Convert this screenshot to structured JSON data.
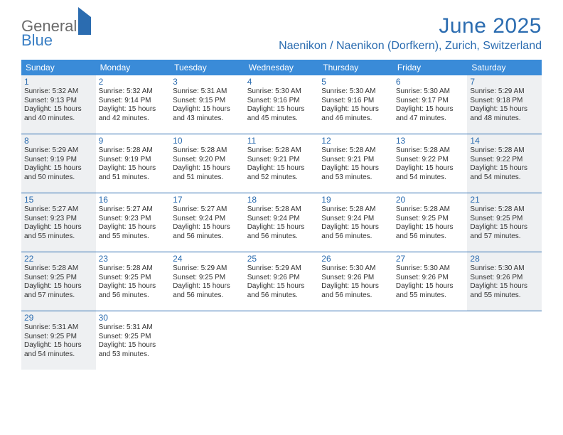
{
  "brand": {
    "general": "General",
    "blue": "Blue"
  },
  "title": "June 2025",
  "location": "Naenikon / Naenikon (Dorfkern), Zurich, Switzerland",
  "colors": {
    "header_bg": "#3a8bd8",
    "accent": "#2b6cb0",
    "shaded": "#eef0f2",
    "text": "#333333",
    "logo_gray": "#6b6b6b",
    "background": "#ffffff"
  },
  "daynames": [
    "Sunday",
    "Monday",
    "Tuesday",
    "Wednesday",
    "Thursday",
    "Friday",
    "Saturday"
  ],
  "weeks": [
    [
      {
        "n": "1",
        "shaded": true,
        "sr": "Sunrise: 5:32 AM",
        "ss": "Sunset: 9:13 PM",
        "d1": "Daylight: 15 hours",
        "d2": "and 40 minutes."
      },
      {
        "n": "2",
        "sr": "Sunrise: 5:32 AM",
        "ss": "Sunset: 9:14 PM",
        "d1": "Daylight: 15 hours",
        "d2": "and 42 minutes."
      },
      {
        "n": "3",
        "sr": "Sunrise: 5:31 AM",
        "ss": "Sunset: 9:15 PM",
        "d1": "Daylight: 15 hours",
        "d2": "and 43 minutes."
      },
      {
        "n": "4",
        "sr": "Sunrise: 5:30 AM",
        "ss": "Sunset: 9:16 PM",
        "d1": "Daylight: 15 hours",
        "d2": "and 45 minutes."
      },
      {
        "n": "5",
        "sr": "Sunrise: 5:30 AM",
        "ss": "Sunset: 9:16 PM",
        "d1": "Daylight: 15 hours",
        "d2": "and 46 minutes."
      },
      {
        "n": "6",
        "sr": "Sunrise: 5:30 AM",
        "ss": "Sunset: 9:17 PM",
        "d1": "Daylight: 15 hours",
        "d2": "and 47 minutes."
      },
      {
        "n": "7",
        "shaded": true,
        "sr": "Sunrise: 5:29 AM",
        "ss": "Sunset: 9:18 PM",
        "d1": "Daylight: 15 hours",
        "d2": "and 48 minutes."
      }
    ],
    [
      {
        "n": "8",
        "shaded": true,
        "sr": "Sunrise: 5:29 AM",
        "ss": "Sunset: 9:19 PM",
        "d1": "Daylight: 15 hours",
        "d2": "and 50 minutes."
      },
      {
        "n": "9",
        "sr": "Sunrise: 5:28 AM",
        "ss": "Sunset: 9:19 PM",
        "d1": "Daylight: 15 hours",
        "d2": "and 51 minutes."
      },
      {
        "n": "10",
        "sr": "Sunrise: 5:28 AM",
        "ss": "Sunset: 9:20 PM",
        "d1": "Daylight: 15 hours",
        "d2": "and 51 minutes."
      },
      {
        "n": "11",
        "sr": "Sunrise: 5:28 AM",
        "ss": "Sunset: 9:21 PM",
        "d1": "Daylight: 15 hours",
        "d2": "and 52 minutes."
      },
      {
        "n": "12",
        "sr": "Sunrise: 5:28 AM",
        "ss": "Sunset: 9:21 PM",
        "d1": "Daylight: 15 hours",
        "d2": "and 53 minutes."
      },
      {
        "n": "13",
        "sr": "Sunrise: 5:28 AM",
        "ss": "Sunset: 9:22 PM",
        "d1": "Daylight: 15 hours",
        "d2": "and 54 minutes."
      },
      {
        "n": "14",
        "shaded": true,
        "sr": "Sunrise: 5:28 AM",
        "ss": "Sunset: 9:22 PM",
        "d1": "Daylight: 15 hours",
        "d2": "and 54 minutes."
      }
    ],
    [
      {
        "n": "15",
        "shaded": true,
        "sr": "Sunrise: 5:27 AM",
        "ss": "Sunset: 9:23 PM",
        "d1": "Daylight: 15 hours",
        "d2": "and 55 minutes."
      },
      {
        "n": "16",
        "sr": "Sunrise: 5:27 AM",
        "ss": "Sunset: 9:23 PM",
        "d1": "Daylight: 15 hours",
        "d2": "and 55 minutes."
      },
      {
        "n": "17",
        "sr": "Sunrise: 5:27 AM",
        "ss": "Sunset: 9:24 PM",
        "d1": "Daylight: 15 hours",
        "d2": "and 56 minutes."
      },
      {
        "n": "18",
        "sr": "Sunrise: 5:28 AM",
        "ss": "Sunset: 9:24 PM",
        "d1": "Daylight: 15 hours",
        "d2": "and 56 minutes."
      },
      {
        "n": "19",
        "sr": "Sunrise: 5:28 AM",
        "ss": "Sunset: 9:24 PM",
        "d1": "Daylight: 15 hours",
        "d2": "and 56 minutes."
      },
      {
        "n": "20",
        "sr": "Sunrise: 5:28 AM",
        "ss": "Sunset: 9:25 PM",
        "d1": "Daylight: 15 hours",
        "d2": "and 56 minutes."
      },
      {
        "n": "21",
        "shaded": true,
        "sr": "Sunrise: 5:28 AM",
        "ss": "Sunset: 9:25 PM",
        "d1": "Daylight: 15 hours",
        "d2": "and 57 minutes."
      }
    ],
    [
      {
        "n": "22",
        "shaded": true,
        "sr": "Sunrise: 5:28 AM",
        "ss": "Sunset: 9:25 PM",
        "d1": "Daylight: 15 hours",
        "d2": "and 57 minutes."
      },
      {
        "n": "23",
        "sr": "Sunrise: 5:28 AM",
        "ss": "Sunset: 9:25 PM",
        "d1": "Daylight: 15 hours",
        "d2": "and 56 minutes."
      },
      {
        "n": "24",
        "sr": "Sunrise: 5:29 AM",
        "ss": "Sunset: 9:25 PM",
        "d1": "Daylight: 15 hours",
        "d2": "and 56 minutes."
      },
      {
        "n": "25",
        "sr": "Sunrise: 5:29 AM",
        "ss": "Sunset: 9:26 PM",
        "d1": "Daylight: 15 hours",
        "d2": "and 56 minutes."
      },
      {
        "n": "26",
        "sr": "Sunrise: 5:30 AM",
        "ss": "Sunset: 9:26 PM",
        "d1": "Daylight: 15 hours",
        "d2": "and 56 minutes."
      },
      {
        "n": "27",
        "sr": "Sunrise: 5:30 AM",
        "ss": "Sunset: 9:26 PM",
        "d1": "Daylight: 15 hours",
        "d2": "and 55 minutes."
      },
      {
        "n": "28",
        "shaded": true,
        "sr": "Sunrise: 5:30 AM",
        "ss": "Sunset: 9:26 PM",
        "d1": "Daylight: 15 hours",
        "d2": "and 55 minutes."
      }
    ],
    [
      {
        "n": "29",
        "shaded": true,
        "sr": "Sunrise: 5:31 AM",
        "ss": "Sunset: 9:25 PM",
        "d1": "Daylight: 15 hours",
        "d2": "and 54 minutes."
      },
      {
        "n": "30",
        "sr": "Sunrise: 5:31 AM",
        "ss": "Sunset: 9:25 PM",
        "d1": "Daylight: 15 hours",
        "d2": "and 53 minutes."
      },
      {
        "empty": true
      },
      {
        "empty": true
      },
      {
        "empty": true
      },
      {
        "empty": true
      },
      {
        "empty": true
      }
    ]
  ]
}
